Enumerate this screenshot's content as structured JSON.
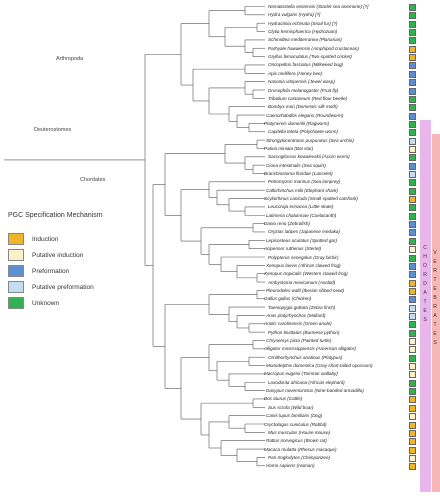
{
  "legend": {
    "title": "PGC Specification Mechanism",
    "items": [
      {
        "label": "Induction",
        "color": "#f0b429"
      },
      {
        "label": "Putative induction",
        "color": "#fbf1c8"
      },
      {
        "label": "Preformation",
        "color": "#5b8fd0"
      },
      {
        "label": "Putative preformation",
        "color": "#c4dcf0"
      },
      {
        "label": "Unknown",
        "color": "#2fb24f"
      }
    ]
  },
  "clades": {
    "arthropoda": "Arthropoda",
    "deuterostomes": "Deuterostomes",
    "chordates": "Chordates"
  },
  "bands": {
    "chordates": "CHORDATES",
    "vertebrates": "VERTEBRATES"
  },
  "taxa": [
    {
      "name": "Nematostella vectensis (Starlet sea anemone) [?]",
      "pgc": "#2fb24f"
    },
    {
      "name": "Hydra vulgaris (Hydra) [?]",
      "pgc": "#2fb24f"
    },
    {
      "name": "Hydractinia echinata (Snail fur) [?]",
      "pgc": "#2fb24f"
    },
    {
      "name": "Clytia hemisphaerica (Hydrozoan)",
      "pgc": "#2fb24f"
    },
    {
      "name": "Schmidtea mediterranea (Planarian)",
      "pgc": "#2fb24f"
    },
    {
      "name": "Parhyale hawaiensis (Amphipod crustacean)",
      "pgc": "#f0b429"
    },
    {
      "name": "Gryllus bimaculatus (Two-spotted cricket)",
      "pgc": "#f0b429"
    },
    {
      "name": "Oncopeltus fasciatus (Milkweed bug)",
      "pgc": "#5b8fd0"
    },
    {
      "name": "Apis mellifera (Honey bee)",
      "pgc": "#5b8fd0"
    },
    {
      "name": "Nasonia vitripennis (Jewel wasp)",
      "pgc": "#5b8fd0"
    },
    {
      "name": "Drosophila melanogaster (Fruit fly)",
      "pgc": "#5b8fd0"
    },
    {
      "name": "Tribolium castaneum (Red flour beetle)",
      "pgc": "#2fb24f"
    },
    {
      "name": "Bombyx mori (Domestic silk moth)",
      "pgc": "#2fb24f"
    },
    {
      "name": "Caenorhabditis elegans (Roundworm)",
      "pgc": "#5b8fd0"
    },
    {
      "name": "Platynereis dumerilii (Ragworm)",
      "pgc": "#2fb24f"
    },
    {
      "name": "Capitella teleta (Polychaete worm)",
      "pgc": "#2fb24f"
    },
    {
      "name": "Strongylocentrotus purpuratus (Sea urchin)",
      "pgc": "#c4dcf0"
    },
    {
      "name": "Patiria miniata (Bat star)",
      "pgc": "#fbf1c8"
    },
    {
      "name": "Saccoglossus kowalevskii (Acorn worm)",
      "pgc": "#2fb24f"
    },
    {
      "name": "Ciona intestinalis (Sea squirt)",
      "pgc": "#5b8fd0"
    },
    {
      "name": "Branchiostoma floridae (Lancelet)",
      "pgc": "#c4dcf0"
    },
    {
      "name": "Petromyzon marinus (Sea lamprey)",
      "pgc": "#2fb24f"
    },
    {
      "name": "Callorhinchus milii (Elephant shark)",
      "pgc": "#2fb24f"
    },
    {
      "name": "Scyliorhinus canicula (Small-spotted catshark)",
      "pgc": "#f0b429"
    },
    {
      "name": "Leucoraja erinacea (Little skate)",
      "pgc": "#2fb24f"
    },
    {
      "name": "Latimeria chalumnae (Coelacanth)",
      "pgc": "#2fb24f"
    },
    {
      "name": "Danio rerio (Zebrafish)",
      "pgc": "#5b8fd0"
    },
    {
      "name": "Oryzias latipes (Japanese medaka)",
      "pgc": "#5b8fd0"
    },
    {
      "name": "Lepisosteus oculatus (Spotted gar)",
      "pgc": "#2fb24f"
    },
    {
      "name": "Acipenser ruthenus (Sterlet)",
      "pgc": "#fbf1c8"
    },
    {
      "name": "Polypterus senegalus (Gray bichir)",
      "pgc": "#2fb24f"
    },
    {
      "name": "Xenopus laevis (African clawed frog)",
      "pgc": "#5b8fd0"
    },
    {
      "name": "Xenopus tropicalis (Western clawed frog)",
      "pgc": "#5b8fd0"
    },
    {
      "name": "Ambystoma mexicanum (Axolotl)",
      "pgc": "#f0b429"
    },
    {
      "name": "Pleurodeles waltl (Iberian ribbed newt)",
      "pgc": "#f0b429"
    },
    {
      "name": "Gallus gallus (Chicken)",
      "pgc": "#5b8fd0"
    },
    {
      "name": "Taeniopygia guttata (Zebra finch)",
      "pgc": "#c4dcf0"
    },
    {
      "name": "Anas platyrhynchos (Mallard)",
      "pgc": "#c4dcf0"
    },
    {
      "name": "Anolis carolinensis (Green anole)",
      "pgc": "#2fb24f"
    },
    {
      "name": "Python bivittatus (Burmese python)",
      "pgc": "#2fb24f"
    },
    {
      "name": "Chrysemys picta (Painted turtle)",
      "pgc": "#fbf1c8"
    },
    {
      "name": "Alligator mississippiensis (American alligator)",
      "pgc": "#fbf1c8"
    },
    {
      "name": "Ornithorhynchus anatinus (Platypus)",
      "pgc": "#2fb24f"
    },
    {
      "name": "Monodelphis domestica (Gray short-tailed opossum)",
      "pgc": "#fbf1c8"
    },
    {
      "name": "Macropus eugenii (Tammar wallaby)",
      "pgc": "#fbf1c8"
    },
    {
      "name": "Loxodonta africana (African elephant)",
      "pgc": "#2fb24f"
    },
    {
      "name": "Dasypus novemcinctus (Nine-banded armadillo)",
      "pgc": "#2fb24f"
    },
    {
      "name": "Bos taurus (Cattle)",
      "pgc": "#f0b429"
    },
    {
      "name": "Sus scrofa (Wild boar)",
      "pgc": "#f0b429"
    },
    {
      "name": "Canis lupus familiaris (Dog)",
      "pgc": "#fbf1c8"
    },
    {
      "name": "Oryctolagus cuniculus (Rabbit)",
      "pgc": "#f0b429"
    },
    {
      "name": "Mus musculus (House mouse)",
      "pgc": "#f0b429"
    },
    {
      "name": "Rattus norvegicus (Brown rat)",
      "pgc": "#f0b429"
    },
    {
      "name": "Macaca mulatta (Rhesus macaque)",
      "pgc": "#f0b429"
    },
    {
      "name": "Pan troglodytes (Chimpanzee)",
      "pgc": "#fbf1c8"
    },
    {
      "name": "Homo sapiens (Human)",
      "pgc": "#f0b429"
    }
  ]
}
